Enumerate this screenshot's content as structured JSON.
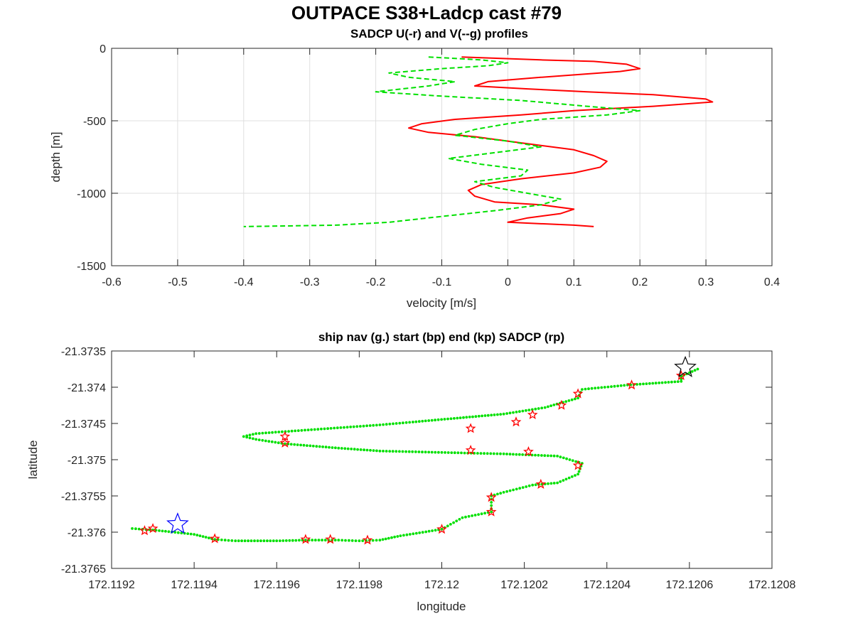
{
  "figure": {
    "title": "OUTPACE S38+Ladcp cast #79"
  },
  "chart_data": [
    {
      "type": "line",
      "title": "SADCP U(-r) and V(--g) profiles",
      "xlabel": "velocity [m/s]",
      "ylabel": "depth [m]",
      "xlim": [
        -0.6,
        0.4
      ],
      "ylim": [
        -1500,
        0
      ],
      "xticks": [
        -0.6,
        -0.5,
        -0.4,
        -0.3,
        -0.2,
        -0.1,
        0,
        0.1,
        0.2,
        0.3,
        0.4
      ],
      "yticks": [
        0,
        -500,
        -1000,
        -1500
      ],
      "xticklabels": [
        "-0.6",
        "-0.5",
        "-0.4",
        "-0.3",
        "-0.2",
        "-0.1",
        "0",
        "0.1",
        "0.2",
        "0.3",
        "0.4"
      ],
      "yticklabels": [
        "0",
        "-500",
        "-1000",
        "-1500"
      ],
      "grid": true,
      "series": [
        {
          "style": "solid",
          "color": "#ff0000",
          "points": [
            [
              -0.07,
              -60
            ],
            [
              0.05,
              -80
            ],
            [
              0.13,
              -90
            ],
            [
              0.18,
              -110
            ],
            [
              0.2,
              -140
            ],
            [
              0.17,
              -160
            ],
            [
              0.05,
              -200
            ],
            [
              -0.03,
              -230
            ],
            [
              -0.05,
              -260
            ],
            [
              0.03,
              -280
            ],
            [
              0.12,
              -300
            ],
            [
              0.22,
              -320
            ],
            [
              0.3,
              -350
            ],
            [
              0.31,
              -370
            ],
            [
              0.22,
              -400
            ],
            [
              0.1,
              -430
            ],
            [
              0.02,
              -460
            ],
            [
              -0.08,
              -490
            ],
            [
              -0.13,
              -520
            ],
            [
              -0.15,
              -550
            ],
            [
              -0.12,
              -580
            ],
            [
              -0.05,
              -610
            ],
            [
              0.0,
              -640
            ],
            [
              0.05,
              -670
            ],
            [
              0.1,
              -700
            ],
            [
              0.13,
              -740
            ],
            [
              0.15,
              -780
            ],
            [
              0.14,
              -820
            ],
            [
              0.1,
              -860
            ],
            [
              0.02,
              -900
            ],
            [
              -0.04,
              -940
            ],
            [
              -0.06,
              -980
            ],
            [
              -0.05,
              -1020
            ],
            [
              -0.02,
              -1060
            ],
            [
              0.05,
              -1080
            ],
            [
              0.1,
              -1110
            ],
            [
              0.08,
              -1140
            ],
            [
              0.03,
              -1170
            ],
            [
              0.0,
              -1200
            ],
            [
              0.1,
              -1220
            ],
            [
              0.13,
              -1230
            ]
          ]
        },
        {
          "style": "dashed",
          "color": "#00e000",
          "points": [
            [
              -0.12,
              -60
            ],
            [
              -0.04,
              -80
            ],
            [
              0.0,
              -100
            ],
            [
              -0.03,
              -120
            ],
            [
              -0.1,
              -140
            ],
            [
              -0.18,
              -170
            ],
            [
              -0.15,
              -200
            ],
            [
              -0.08,
              -230
            ],
            [
              -0.12,
              -260
            ],
            [
              -0.2,
              -300
            ],
            [
              -0.1,
              -330
            ],
            [
              0.02,
              -360
            ],
            [
              0.12,
              -400
            ],
            [
              0.2,
              -430
            ],
            [
              0.15,
              -460
            ],
            [
              0.05,
              -490
            ],
            [
              0.0,
              -520
            ],
            [
              -0.05,
              -560
            ],
            [
              -0.08,
              -600
            ],
            [
              0.0,
              -640
            ],
            [
              0.05,
              -680
            ],
            [
              -0.02,
              -720
            ],
            [
              -0.09,
              -760
            ],
            [
              -0.04,
              -800
            ],
            [
              0.03,
              -840
            ],
            [
              0.02,
              -880
            ],
            [
              -0.05,
              -920
            ],
            [
              -0.02,
              -960
            ],
            [
              0.03,
              -1000
            ],
            [
              0.08,
              -1040
            ],
            [
              0.05,
              -1080
            ],
            [
              -0.02,
              -1120
            ],
            [
              -0.1,
              -1160
            ],
            [
              -0.18,
              -1200
            ],
            [
              -0.26,
              -1220
            ],
            [
              -0.4,
              -1230
            ]
          ]
        }
      ]
    },
    {
      "type": "scatter",
      "title": "ship nav (g.) start (bp) end (kp) SADCP (rp)",
      "xlabel": "longitude",
      "ylabel": "latitude",
      "xlim": [
        172.1192,
        172.1208
      ],
      "ylim": [
        -21.3765,
        -21.3735
      ],
      "xticks": [
        172.1192,
        172.1194,
        172.1196,
        172.1198,
        172.12,
        172.1202,
        172.1204,
        172.1206,
        172.1208
      ],
      "yticks": [
        -21.3735,
        -21.374,
        -21.3745,
        -21.375,
        -21.3755,
        -21.376,
        -21.3765
      ],
      "xticklabels": [
        "172.1192",
        "172.1194",
        "172.1196",
        "172.1198",
        "172.12",
        "172.1202",
        "172.1204",
        "172.1206",
        "172.1208"
      ],
      "yticklabels": [
        "-21.3735",
        "-21.374",
        "-21.3745",
        "-21.375",
        "-21.3755",
        "-21.376",
        "-21.3765"
      ],
      "grid": false,
      "nav_track": [
        [
          172.11925,
          -21.37595
        ],
        [
          172.1193,
          -21.37597
        ],
        [
          172.1194,
          -21.37603
        ],
        [
          172.11945,
          -21.3761
        ],
        [
          172.1195,
          -21.37612
        ],
        [
          172.1196,
          -21.37612
        ],
        [
          172.11967,
          -21.37611
        ],
        [
          172.11975,
          -21.37611
        ],
        [
          172.1198,
          -21.37612
        ],
        [
          172.11985,
          -21.37611
        ],
        [
          172.1199,
          -21.37605
        ],
        [
          172.12,
          -21.37596
        ],
        [
          172.12005,
          -21.3758
        ],
        [
          172.12012,
          -21.37572
        ],
        [
          172.12012,
          -21.3755
        ],
        [
          172.12015,
          -21.37545
        ],
        [
          172.12022,
          -21.37535
        ],
        [
          172.12028,
          -21.37532
        ],
        [
          172.12033,
          -21.3752
        ],
        [
          172.12034,
          -21.37505
        ],
        [
          172.12028,
          -21.37495
        ],
        [
          172.12015,
          -21.37492
        ],
        [
          172.12,
          -21.3749
        ],
        [
          172.11985,
          -21.37488
        ],
        [
          172.11975,
          -21.37484
        ],
        [
          172.11962,
          -21.37478
        ],
        [
          172.11955,
          -21.37472
        ],
        [
          172.11952,
          -21.37468
        ],
        [
          172.11955,
          -21.37464
        ],
        [
          172.1197,
          -21.37458
        ],
        [
          172.11985,
          -21.37452
        ],
        [
          172.11993,
          -21.37448
        ],
        [
          172.12003,
          -21.37443
        ],
        [
          172.12015,
          -21.37437
        ],
        [
          172.12025,
          -21.37428
        ],
        [
          172.12033,
          -21.37415
        ],
        [
          172.12034,
          -21.37403
        ],
        [
          172.12045,
          -21.37397
        ],
        [
          172.12058,
          -21.37392
        ],
        [
          172.12058,
          -21.37385
        ],
        [
          172.12062,
          -21.37375
        ]
      ],
      "sadcp_points": [
        [
          172.11928,
          -21.37598
        ],
        [
          172.1193,
          -21.37595
        ],
        [
          172.11945,
          -21.37609
        ],
        [
          172.11967,
          -21.3761
        ],
        [
          172.11973,
          -21.3761
        ],
        [
          172.11982,
          -21.37611
        ],
        [
          172.12,
          -21.37596
        ],
        [
          172.12012,
          -21.37572
        ],
        [
          172.12012,
          -21.37552
        ],
        [
          172.12024,
          -21.37534
        ],
        [
          172.12033,
          -21.37508
        ],
        [
          172.12021,
          -21.37489
        ],
        [
          172.12007,
          -21.37487
        ],
        [
          172.11962,
          -21.37477
        ],
        [
          172.11962,
          -21.37468
        ],
        [
          172.12007,
          -21.37457
        ],
        [
          172.12018,
          -21.37448
        ],
        [
          172.12022,
          -21.37438
        ],
        [
          172.12029,
          -21.37425
        ],
        [
          172.12033,
          -21.37409
        ],
        [
          172.12046,
          -21.37397
        ],
        [
          172.12058,
          -21.37384
        ]
      ],
      "start_point": [
        172.11936,
        -21.37589
      ],
      "end_point": [
        172.12059,
        -21.37373
      ],
      "colors": {
        "nav": "#00e000",
        "sadcp": "#ff0000",
        "start": "#0000ff",
        "end": "#000000"
      }
    }
  ]
}
